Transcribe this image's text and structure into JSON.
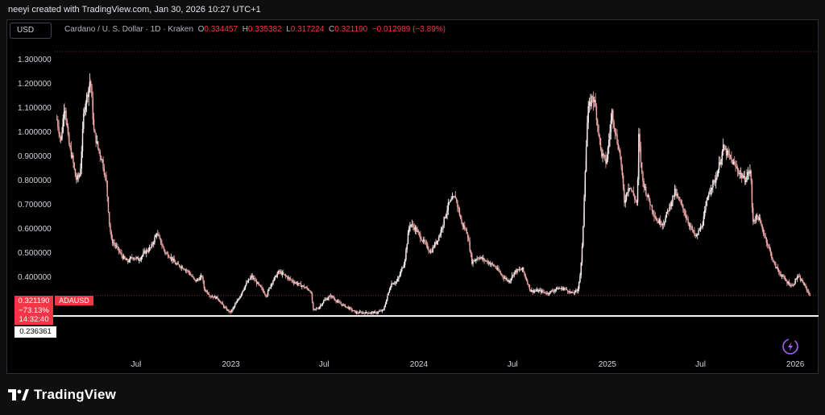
{
  "header": {
    "title": "neeyi created with TradingView.com, Jan 30, 2026 10:27 UTC+1"
  },
  "toolbar": {
    "currency": "USD"
  },
  "legend": {
    "symbol_text": "Cardano / U. S. Dollar · 1D · Kraken",
    "o_key": "O",
    "o_val": "0.334457",
    "h_key": "H",
    "h_val": "0.335382",
    "l_key": "L",
    "l_val": "0.317224",
    "c_key": "C",
    "c_val": "0.321190",
    "change": "−0.012989 (−3.89%)"
  },
  "price_tags": {
    "last_price": "0.321190",
    "change_pct": "−73.13%",
    "countdown": "14:32:40",
    "symbol": "ADAUSD",
    "line_price": "0.236361"
  },
  "footer": {
    "logo_text": "TradingView"
  },
  "colors": {
    "background": "#000000",
    "candle": "#f0a8a8",
    "candle_bright": "#ffffff",
    "down_accent": "#f23645",
    "line": "#ffffff",
    "dotted": "#8a2a2a"
  },
  "chart_data": {
    "type": "line",
    "title": "Cardano / U. S. Dollar · 1D · Kraken",
    "xlabel": "",
    "ylabel": "",
    "ylim": [
      0.19,
      1.33
    ],
    "y_ticks": [
      "1.300000",
      "1.200000",
      "1.100000",
      "1.000000",
      "0.900000",
      "0.800000",
      "0.700000",
      "0.600000",
      "0.500000",
      "0.400000"
    ],
    "x_ticks": [
      {
        "label": "Jul",
        "date": "2022-07-01"
      },
      {
        "label": "2023",
        "date": "2023-01-01"
      },
      {
        "label": "Jul",
        "date": "2023-07-01"
      },
      {
        "label": "2024",
        "date": "2024-01-01"
      },
      {
        "label": "Jul",
        "date": "2024-07-01"
      },
      {
        "label": "2025",
        "date": "2025-01-01"
      },
      {
        "label": "Jul",
        "date": "2025-07-01"
      },
      {
        "label": "2026",
        "date": "2026-01-01"
      }
    ],
    "horizontal_line": 0.236361,
    "last_close": 0.32119,
    "series": [
      {
        "x": [
          "2022-01-28",
          "2022-02-05",
          "2022-02-12",
          "2022-02-20",
          "2022-02-28",
          "2022-03-06",
          "2022-03-14",
          "2022-03-22",
          "2022-03-28",
          "2022-04-03",
          "2022-04-10",
          "2022-04-18",
          "2022-04-26",
          "2022-05-04",
          "2022-05-10",
          "2022-05-14",
          "2022-05-24",
          "2022-06-05",
          "2022-06-14",
          "2022-06-24",
          "2022-07-06",
          "2022-07-18",
          "2022-07-30",
          "2022-08-10",
          "2022-08-16",
          "2022-08-26",
          "2022-09-06",
          "2022-09-16",
          "2022-09-28",
          "2022-10-10",
          "2022-10-24",
          "2022-11-06",
          "2022-11-10",
          "2022-11-22",
          "2022-12-06",
          "2022-12-20",
          "2022-12-31",
          "2023-01-14",
          "2023-01-28",
          "2023-02-10",
          "2023-02-18",
          "2023-03-01",
          "2023-03-11",
          "2023-03-20",
          "2023-04-04",
          "2023-04-18",
          "2023-05-01",
          "2023-05-20",
          "2023-06-05",
          "2023-06-10",
          "2023-06-20",
          "2023-07-01",
          "2023-07-14",
          "2023-07-30",
          "2023-08-17",
          "2023-09-01",
          "2023-09-20",
          "2023-10-10",
          "2023-10-24",
          "2023-11-08",
          "2023-11-20",
          "2023-12-04",
          "2023-12-14",
          "2023-12-24",
          "2024-01-08",
          "2024-01-24",
          "2024-02-10",
          "2024-02-28",
          "2024-03-12",
          "2024-03-24",
          "2024-04-04",
          "2024-04-13",
          "2024-04-26",
          "2024-05-14",
          "2024-05-28",
          "2024-06-12",
          "2024-06-24",
          "2024-07-05",
          "2024-07-20",
          "2024-08-05",
          "2024-08-24",
          "2024-09-06",
          "2024-09-26",
          "2024-10-10",
          "2024-10-24",
          "2024-11-04",
          "2024-11-10",
          "2024-11-14",
          "2024-11-18",
          "2024-11-24",
          "2024-12-03",
          "2024-12-09",
          "2024-12-20",
          "2024-12-30",
          "2025-01-10",
          "2025-01-18",
          "2025-01-26",
          "2025-02-03",
          "2025-02-12",
          "2025-02-28",
          "2025-03-03",
          "2025-03-10",
          "2025-03-20",
          "2025-04-07",
          "2025-04-20",
          "2025-05-12",
          "2025-05-28",
          "2025-06-08",
          "2025-06-22",
          "2025-07-05",
          "2025-07-18",
          "2025-07-30",
          "2025-08-14",
          "2025-08-24",
          "2025-09-08",
          "2025-09-24",
          "2025-10-06",
          "2025-10-10",
          "2025-10-20",
          "2025-11-04",
          "2025-11-21",
          "2025-12-03",
          "2025-12-14",
          "2025-12-26",
          "2026-01-05",
          "2026-01-14",
          "2026-01-22",
          "2026-01-30"
        ],
        "y": [
          1.05,
          0.96,
          1.12,
          0.95,
          0.88,
          0.8,
          0.82,
          1.1,
          1.15,
          1.22,
          1.0,
          0.93,
          0.88,
          0.79,
          0.62,
          0.55,
          0.52,
          0.48,
          0.46,
          0.48,
          0.47,
          0.5,
          0.52,
          0.58,
          0.55,
          0.5,
          0.48,
          0.45,
          0.44,
          0.42,
          0.38,
          0.4,
          0.35,
          0.32,
          0.31,
          0.27,
          0.25,
          0.3,
          0.36,
          0.4,
          0.38,
          0.35,
          0.32,
          0.37,
          0.42,
          0.4,
          0.38,
          0.36,
          0.34,
          0.26,
          0.27,
          0.3,
          0.32,
          0.29,
          0.27,
          0.25,
          0.25,
          0.25,
          0.26,
          0.37,
          0.38,
          0.46,
          0.62,
          0.6,
          0.55,
          0.5,
          0.57,
          0.7,
          0.73,
          0.62,
          0.58,
          0.46,
          0.48,
          0.46,
          0.44,
          0.4,
          0.38,
          0.42,
          0.43,
          0.34,
          0.34,
          0.33,
          0.35,
          0.35,
          0.33,
          0.34,
          0.42,
          0.55,
          0.8,
          1.08,
          1.15,
          1.1,
          0.91,
          0.87,
          1.08,
          0.98,
          0.9,
          0.71,
          0.78,
          0.7,
          0.98,
          0.8,
          0.73,
          0.63,
          0.62,
          0.75,
          0.68,
          0.62,
          0.56,
          0.62,
          0.76,
          0.8,
          0.93,
          0.9,
          0.85,
          0.8,
          0.84,
          0.63,
          0.65,
          0.56,
          0.45,
          0.41,
          0.38,
          0.36,
          0.4,
          0.38,
          0.35,
          0.32119
        ]
      }
    ]
  }
}
